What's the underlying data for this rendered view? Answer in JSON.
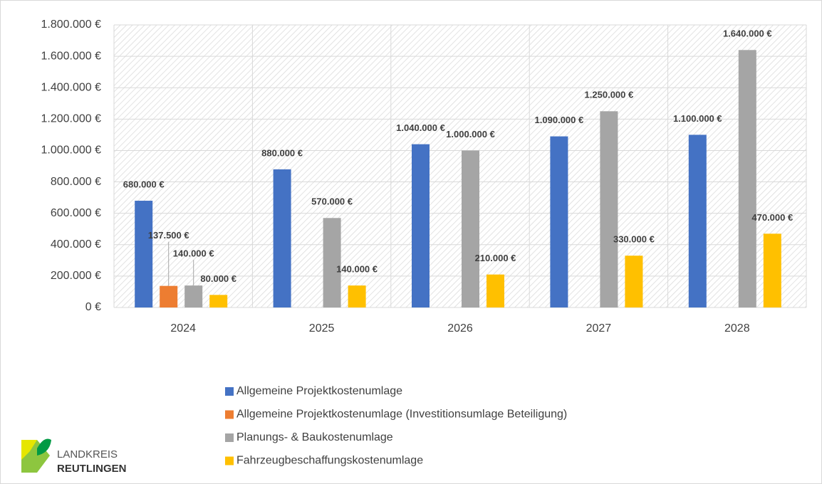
{
  "chart_data": {
    "type": "bar",
    "categories": [
      "2024",
      "2025",
      "2026",
      "2027",
      "2028"
    ],
    "series": [
      {
        "name": "Allgemeine Projektkostenumlage",
        "color": "#4472c4",
        "values": [
          680000,
          880000,
          1040000,
          1090000,
          1100000
        ],
        "value_labels": [
          "680.000 €",
          "880.000 €",
          "1.040.000 €",
          "1.090.000 €",
          "1.100.000 €"
        ]
      },
      {
        "name": "Allgemeine Projektkostenumlage (Investitionsumlage Beteiligung)",
        "color": "#ed7d31",
        "values": [
          137500,
          null,
          null,
          null,
          null
        ],
        "value_labels": [
          "137.500 €",
          null,
          null,
          null,
          null
        ]
      },
      {
        "name": "Planungs- & Baukostenumlage",
        "color": "#a5a5a5",
        "values": [
          140000,
          570000,
          1000000,
          1250000,
          1640000
        ],
        "value_labels": [
          "140.000 €",
          "570.000 €",
          "1.000.000 €",
          "1.250.000 €",
          "1.640.000 €"
        ]
      },
      {
        "name": "Fahrzeugbeschaffungskostenumlage",
        "color": "#ffc000",
        "values": [
          80000,
          140000,
          210000,
          330000,
          470000
        ],
        "value_labels": [
          "80.000 €",
          "140.000 €",
          "210.000 €",
          "330.000 €",
          "470.000 €"
        ]
      }
    ],
    "ylim": [
      0,
      1800000
    ],
    "yticks": [
      {
        "value": 0,
        "label": "0 €"
      },
      {
        "value": 200000,
        "label": "200.000 €"
      },
      {
        "value": 400000,
        "label": "400.000 €"
      },
      {
        "value": 600000,
        "label": "600.000 €"
      },
      {
        "value": 800000,
        "label": "800.000 €"
      },
      {
        "value": 1000000,
        "label": "1.000.000 €"
      },
      {
        "value": 1200000,
        "label": "1.200.000 €"
      },
      {
        "value": 1400000,
        "label": "1.400.000 €"
      },
      {
        "value": 1600000,
        "label": "1.600.000 €"
      },
      {
        "value": 1800000,
        "label": "1.800.000 €"
      }
    ],
    "grid": true,
    "legend": "bottom"
  },
  "logo": {
    "line1": "LANDKREIS",
    "line2": "REUTLINGEN"
  }
}
